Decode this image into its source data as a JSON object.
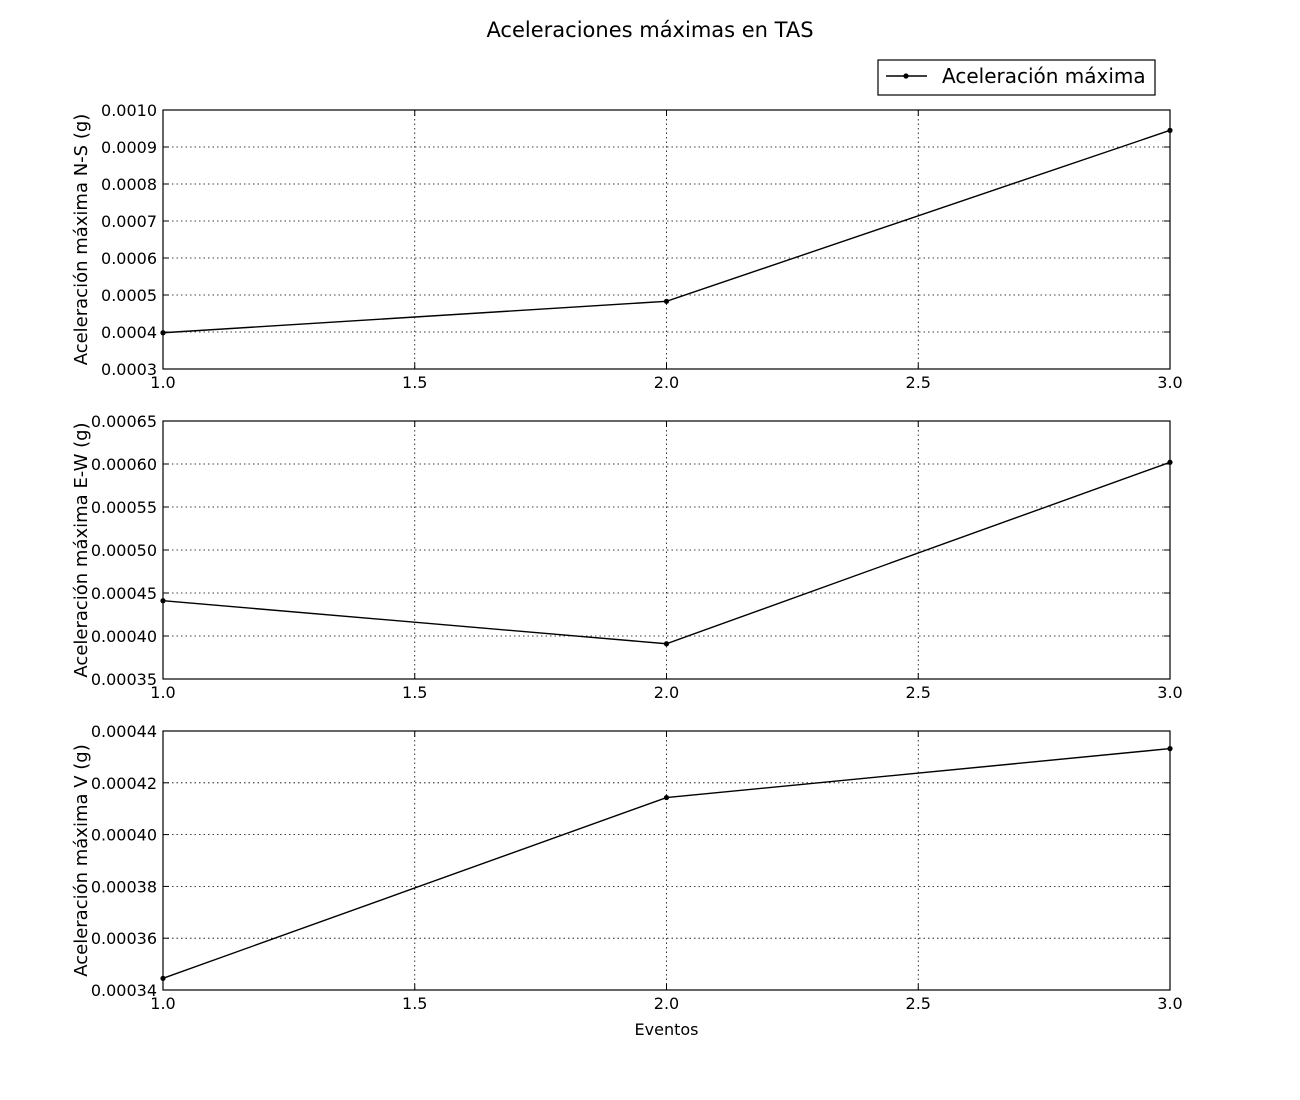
{
  "chart_data": [
    {
      "type": "line",
      "title": "Aceleraciones máximas en TAS",
      "ylabel": "Aceleración máxima N-S (g)",
      "xlabel": "",
      "x": [
        1.0,
        2.0,
        3.0
      ],
      "series": [
        {
          "name": "Aceleración máxima",
          "values": [
            0.000398,
            0.000483,
            0.000945
          ]
        }
      ],
      "xlim": [
        1.0,
        3.0
      ],
      "ylim": [
        0.0003,
        0.001
      ],
      "xticks": [
        "1.0",
        "1.5",
        "2.0",
        "2.5",
        "3.0"
      ],
      "yticks": [
        "0.0003",
        "0.0004",
        "0.0005",
        "0.0006",
        "0.0007",
        "0.0008",
        "0.0009",
        "0.0010"
      ],
      "grid": true,
      "legend": "top-right"
    },
    {
      "type": "line",
      "ylabel": "Aceleración máxima E-W (g)",
      "xlabel": "",
      "x": [
        1.0,
        2.0,
        3.0
      ],
      "series": [
        {
          "values": [
            0.000441,
            0.000391,
            0.000602
          ]
        }
      ],
      "xlim": [
        1.0,
        3.0
      ],
      "ylim": [
        0.00035,
        0.00065
      ],
      "xticks": [
        "1.0",
        "1.5",
        "2.0",
        "2.5",
        "3.0"
      ],
      "yticks": [
        "0.00035",
        "0.00040",
        "0.00045",
        "0.00050",
        "0.00055",
        "0.00060",
        "0.00065"
      ],
      "grid": true
    },
    {
      "type": "line",
      "ylabel": "Aceleración máxima V (g)",
      "xlabel": "Eventos",
      "x": [
        1.0,
        2.0,
        3.0
      ],
      "series": [
        {
          "values": [
            0.0003445,
            0.0004143,
            0.0004332
          ]
        }
      ],
      "xlim": [
        1.0,
        3.0
      ],
      "ylim": [
        0.00034,
        0.00044
      ],
      "xticks": [
        "1.0",
        "1.5",
        "2.0",
        "2.5",
        "3.0"
      ],
      "yticks": [
        "0.00034",
        "0.00036",
        "0.00038",
        "0.00040",
        "0.00042",
        "0.00044"
      ],
      "grid": true
    }
  ],
  "colors": {
    "line": "#000000",
    "background": "#ffffff"
  }
}
